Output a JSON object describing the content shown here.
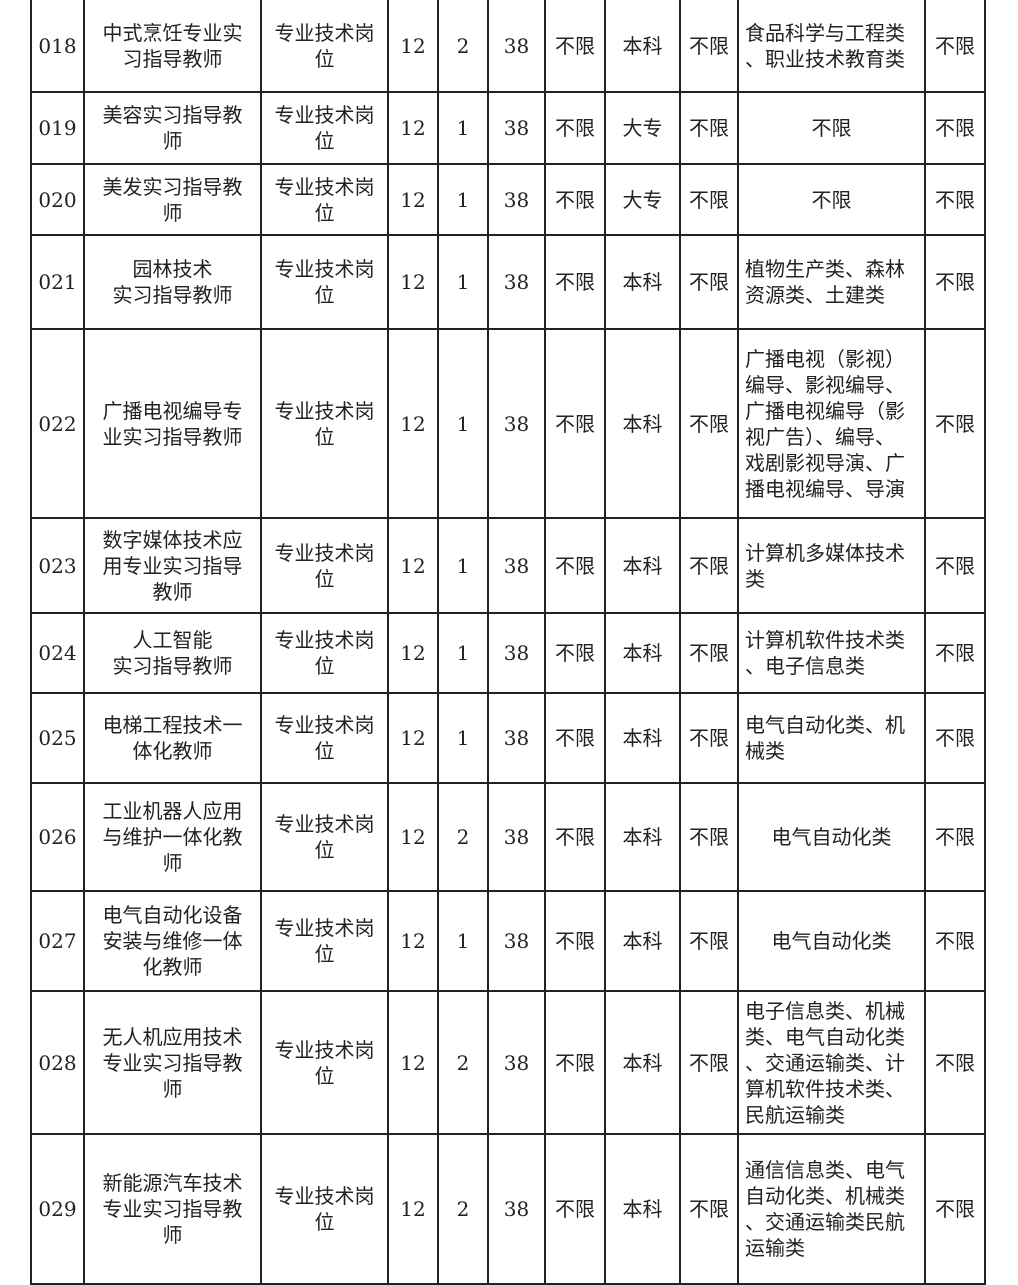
{
  "table": {
    "rows": [
      {
        "id": "018",
        "name": "中式烹饪专业实\n习指导教师",
        "type": "专业技术岗\n位",
        "grade": "12",
        "count": "2",
        "age": "38",
        "gender": "不限",
        "education": "本科",
        "degree": "不限",
        "major": "食品科学与工程类\n、职业技术教育类",
        "other": "不限"
      },
      {
        "id": "019",
        "name": "美容实习指导教\n师",
        "type": "专业技术岗\n位",
        "grade": "12",
        "count": "1",
        "age": "38",
        "gender": "不限",
        "education": "大专",
        "degree": "不限",
        "major": "不限",
        "other": "不限"
      },
      {
        "id": "020",
        "name": "美发实习指导教\n师",
        "type": "专业技术岗\n位",
        "grade": "12",
        "count": "1",
        "age": "38",
        "gender": "不限",
        "education": "大专",
        "degree": "不限",
        "major": "不限",
        "other": "不限"
      },
      {
        "id": "021",
        "name": "园林技术\n实习指导教师",
        "type": "专业技术岗\n位",
        "grade": "12",
        "count": "1",
        "age": "38",
        "gender": "不限",
        "education": "本科",
        "degree": "不限",
        "major": "植物生产类、森林\n资源类、土建类",
        "other": "不限"
      },
      {
        "id": "022",
        "name": "广播电视编导专\n业实习指导教师",
        "type": "专业技术岗\n位",
        "grade": "12",
        "count": "1",
        "age": "38",
        "gender": "不限",
        "education": "本科",
        "degree": "不限",
        "major": "广播电视（影视）\n编导、影视编导、\n广播电视编导（影\n视广告）、编导、\n戏剧影视导演、广\n播电视编导、导演",
        "other": "不限"
      },
      {
        "id": "023",
        "name": "数字媒体技术应\n用专业实习指导\n教师",
        "type": "专业技术岗\n位",
        "grade": "12",
        "count": "1",
        "age": "38",
        "gender": "不限",
        "education": "本科",
        "degree": "不限",
        "major": "计算机多媒体技术\n类",
        "other": "不限"
      },
      {
        "id": "024",
        "name": "人工智能\n实习指导教师",
        "type": "专业技术岗\n位",
        "grade": "12",
        "count": "1",
        "age": "38",
        "gender": "不限",
        "education": "本科",
        "degree": "不限",
        "major": "计算机软件技术类\n、电子信息类",
        "other": "不限"
      },
      {
        "id": "025",
        "name": "电梯工程技术一\n体化教师",
        "type": "专业技术岗\n位",
        "grade": "12",
        "count": "1",
        "age": "38",
        "gender": "不限",
        "education": "本科",
        "degree": "不限",
        "major": "电气自动化类、机\n械类",
        "other": "不限"
      },
      {
        "id": "026",
        "name": "工业机器人应用\n与维护一体化教\n师",
        "type": "专业技术岗\n位",
        "grade": "12",
        "count": "2",
        "age": "38",
        "gender": "不限",
        "education": "本科",
        "degree": "不限",
        "major": "电气自动化类",
        "other": "不限"
      },
      {
        "id": "027",
        "name": "电气自动化设备\n安装与维修一体\n化教师",
        "type": "专业技术岗\n位",
        "grade": "12",
        "count": "1",
        "age": "38",
        "gender": "不限",
        "education": "本科",
        "degree": "不限",
        "major": "电气自动化类",
        "other": "不限"
      },
      {
        "id": "028",
        "name": "无人机应用技术\n专业实习指导教\n师",
        "type": "专业技术岗\n位",
        "grade": "12",
        "count": "2",
        "age": "38",
        "gender": "不限",
        "education": "本科",
        "degree": "不限",
        "major": "电子信息类、机械\n类、电气自动化类\n、交通运输类、计\n算机软件技术类、\n民航运输类",
        "other": "不限"
      },
      {
        "id": "029",
        "name": "新能源汽车技术\n专业实习指导教\n师",
        "type": "专业技术岗\n位",
        "grade": "12",
        "count": "2",
        "age": "38",
        "gender": "不限",
        "education": "本科",
        "degree": "不限",
        "major": "通信信息类、电气\n自动化类、机械类\n、交通运输类民航\n运输类",
        "other": "不限"
      }
    ]
  }
}
